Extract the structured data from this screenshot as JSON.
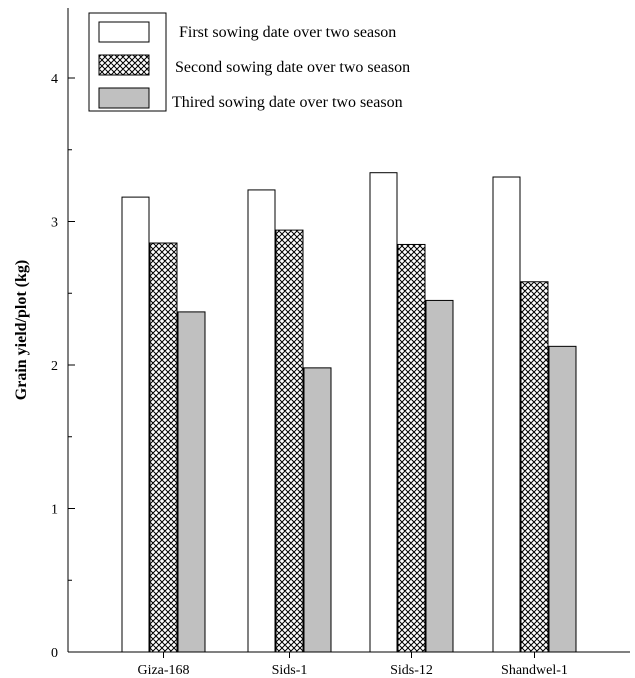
{
  "chart_data": {
    "type": "bar",
    "title": "",
    "xlabel": "",
    "ylabel": "Grain yield/plot (kg)",
    "ylim": [
      0,
      4.5
    ],
    "yticks": [
      "0",
      "1",
      "2",
      "3",
      "4"
    ],
    "categories": [
      "Giza-168",
      "Sids-1",
      "Sids-12",
      "Shandwel-1"
    ],
    "series": [
      {
        "name": "First sowing date over two season",
        "values": [
          3.17,
          3.22,
          3.34,
          3.31
        ],
        "fill": "#ffffff"
      },
      {
        "name": "Second sowing date over two season",
        "values": [
          2.85,
          2.94,
          2.84,
          2.58
        ],
        "fill": "crosshatch"
      },
      {
        "name": "Thired sowing date over two season",
        "values": [
          2.37,
          1.98,
          2.45,
          2.13
        ],
        "fill": "#c0c0c0"
      }
    ],
    "legend": "top-left",
    "grid": false
  }
}
